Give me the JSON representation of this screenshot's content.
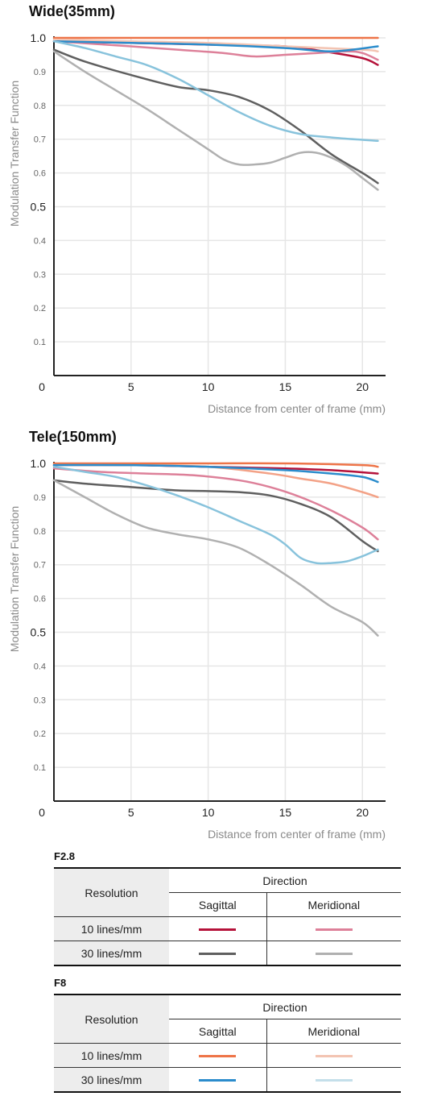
{
  "charts": [
    {
      "title": "Wide(35mm)",
      "xlabel": "Distance from center of frame (mm)",
      "ylabel": "Modulation Transfer Function",
      "xlim": [
        0,
        21.5
      ],
      "ylim": [
        0,
        1.0
      ],
      "xticks": [
        0,
        5,
        10,
        15,
        20
      ],
      "yticks": [
        {
          "v": 1.0,
          "label": "1.0",
          "major": true
        },
        {
          "v": 0.9,
          "label": "0.9",
          "major": false
        },
        {
          "v": 0.8,
          "label": "0.8",
          "major": false
        },
        {
          "v": 0.7,
          "label": "0.7",
          "major": false
        },
        {
          "v": 0.6,
          "label": "0.6",
          "major": false
        },
        {
          "v": 0.5,
          "label": "0.5",
          "major": true
        },
        {
          "v": 0.4,
          "label": "0.4",
          "major": false
        },
        {
          "v": 0.3,
          "label": "0.3",
          "major": false
        },
        {
          "v": 0.2,
          "label": "0.2",
          "major": false
        },
        {
          "v": 0.1,
          "label": "0.1",
          "major": false
        }
      ],
      "grid": true
    },
    {
      "title": "Tele(150mm)",
      "xlabel": "Distance from center of frame (mm)",
      "ylabel": "Modulation Transfer Function",
      "xlim": [
        0,
        21.5
      ],
      "ylim": [
        0,
        1.0
      ],
      "xticks": [
        0,
        5,
        10,
        15,
        20
      ],
      "yticks": [
        {
          "v": 1.0,
          "label": "1.0",
          "major": true
        },
        {
          "v": 0.9,
          "label": "0.9",
          "major": false
        },
        {
          "v": 0.8,
          "label": "0.8",
          "major": false
        },
        {
          "v": 0.7,
          "label": "0.7",
          "major": false
        },
        {
          "v": 0.6,
          "label": "0.6",
          "major": false
        },
        {
          "v": 0.5,
          "label": "0.5",
          "major": true
        },
        {
          "v": 0.4,
          "label": "0.4",
          "major": false
        },
        {
          "v": 0.3,
          "label": "0.3",
          "major": false
        },
        {
          "v": 0.2,
          "label": "0.2",
          "major": false
        },
        {
          "v": 0.1,
          "label": "0.1",
          "major": false
        }
      ],
      "grid": true
    }
  ],
  "chart_data": [
    {
      "type": "line",
      "title": "Wide(35mm)",
      "xlabel": "Distance from center of frame (mm)",
      "ylabel": "Modulation Transfer Function",
      "xlim": [
        0,
        21.5
      ],
      "ylim": [
        0,
        1.0
      ],
      "series": [
        {
          "key": "f28-10-sag",
          "color": "#b5123a",
          "x": [
            0,
            5,
            10,
            15,
            17.5,
            20,
            21
          ],
          "y": [
            0.99,
            0.985,
            0.98,
            0.975,
            0.96,
            0.94,
            0.92
          ]
        },
        {
          "key": "f28-10-mer",
          "color": "#dd8099",
          "x": [
            0,
            5,
            8,
            11,
            13,
            15,
            17,
            19,
            20,
            21
          ],
          "y": [
            0.99,
            0.975,
            0.965,
            0.955,
            0.945,
            0.95,
            0.955,
            0.96,
            0.955,
            0.935
          ]
        },
        {
          "key": "f28-30-sag",
          "color": "#5f5f5f",
          "x": [
            0,
            2,
            5,
            8,
            10,
            12,
            14,
            16,
            18,
            20,
            21
          ],
          "y": [
            0.965,
            0.93,
            0.89,
            0.855,
            0.845,
            0.825,
            0.785,
            0.725,
            0.655,
            0.6,
            0.57
          ]
        },
        {
          "key": "f28-30-mer",
          "color": "#b0b0b0",
          "x": [
            0,
            2,
            4,
            6,
            8,
            10,
            11,
            12,
            13,
            14,
            15,
            16,
            17,
            18,
            19,
            20,
            21
          ],
          "y": [
            0.96,
            0.9,
            0.845,
            0.79,
            0.73,
            0.67,
            0.64,
            0.625,
            0.625,
            0.63,
            0.645,
            0.66,
            0.66,
            0.645,
            0.62,
            0.585,
            0.55
          ]
        },
        {
          "key": "f8-10-sag",
          "color": "#ee7448",
          "x": [
            0,
            5,
            10,
            15,
            20,
            21
          ],
          "y": [
            1.0,
            1.0,
            1.0,
            1.0,
            1.0,
            1.0
          ]
        },
        {
          "key": "f8-10-mer",
          "color": "#f3c4b2",
          "x": [
            0,
            5,
            10,
            15,
            20,
            21
          ],
          "y": [
            0.995,
            0.99,
            0.985,
            0.975,
            0.965,
            0.96
          ]
        },
        {
          "key": "f8-30-sag",
          "color": "#2b8ccc",
          "x": [
            0,
            5,
            10,
            15,
            18,
            21
          ],
          "y": [
            0.99,
            0.985,
            0.98,
            0.97,
            0.96,
            0.975
          ]
        },
        {
          "key": "f8-30-mer",
          "color": "#88c3dc",
          "x": [
            0,
            2,
            4,
            6,
            8,
            10,
            12,
            14,
            16,
            18,
            20,
            21
          ],
          "y": [
            0.99,
            0.97,
            0.945,
            0.92,
            0.88,
            0.83,
            0.78,
            0.74,
            0.715,
            0.705,
            0.698,
            0.695
          ]
        }
      ]
    },
    {
      "type": "line",
      "title": "Tele(150mm)",
      "xlabel": "Distance from center of frame (mm)",
      "ylabel": "Modulation Transfer Function",
      "xlim": [
        0,
        21.5
      ],
      "ylim": [
        0,
        1.0
      ],
      "series": [
        {
          "key": "f28-10-sag",
          "color": "#b5123a",
          "x": [
            0,
            5,
            10,
            15,
            18,
            21
          ],
          "y": [
            0.995,
            0.995,
            0.99,
            0.985,
            0.98,
            0.97
          ]
        },
        {
          "key": "f28-10-mer",
          "color": "#dd8099",
          "x": [
            0,
            3,
            6,
            9,
            12,
            14,
            16,
            18,
            20,
            21
          ],
          "y": [
            0.985,
            0.975,
            0.97,
            0.965,
            0.95,
            0.93,
            0.9,
            0.86,
            0.81,
            0.775
          ]
        },
        {
          "key": "f28-30-sag",
          "color": "#5f5f5f",
          "x": [
            0,
            2,
            5,
            8,
            10,
            12,
            14,
            16,
            18,
            20,
            21
          ],
          "y": [
            0.95,
            0.94,
            0.93,
            0.92,
            0.918,
            0.915,
            0.905,
            0.88,
            0.84,
            0.77,
            0.74
          ]
        },
        {
          "key": "f28-30-mer",
          "color": "#b0b0b0",
          "x": [
            0,
            2,
            4,
            6,
            8,
            10,
            12,
            14,
            16,
            18,
            20,
            21
          ],
          "y": [
            0.95,
            0.9,
            0.85,
            0.81,
            0.79,
            0.775,
            0.75,
            0.7,
            0.64,
            0.575,
            0.53,
            0.49
          ]
        },
        {
          "key": "f8-10-sag",
          "color": "#ee7448",
          "x": [
            0,
            5,
            10,
            15,
            20,
            21
          ],
          "y": [
            1.0,
            1.0,
            1.0,
            1.0,
            0.995,
            0.99
          ]
        },
        {
          "key": "f8-10-mer",
          "color": "#f3a287",
          "x": [
            0,
            5,
            10,
            14,
            16,
            18,
            20,
            21
          ],
          "y": [
            0.995,
            0.995,
            0.99,
            0.97,
            0.955,
            0.94,
            0.915,
            0.9
          ]
        },
        {
          "key": "f8-30-sag",
          "color": "#2b8ccc",
          "x": [
            0,
            5,
            10,
            15,
            18,
            20,
            21
          ],
          "y": [
            0.995,
            0.995,
            0.99,
            0.98,
            0.97,
            0.96,
            0.945
          ]
        },
        {
          "key": "f8-30-mer",
          "color": "#88c3dc",
          "x": [
            0,
            2,
            4,
            6,
            8,
            10,
            12,
            14,
            15,
            16,
            17,
            18,
            19,
            20,
            21
          ],
          "y": [
            0.99,
            0.975,
            0.96,
            0.935,
            0.905,
            0.87,
            0.83,
            0.79,
            0.76,
            0.72,
            0.705,
            0.705,
            0.71,
            0.725,
            0.745
          ]
        }
      ]
    }
  ],
  "legends": [
    {
      "heading": "F2.8",
      "resolution_label": "Resolution",
      "direction_label": "Direction",
      "sagittal_label": "Sagittal",
      "meridional_label": "Meridional",
      "rows": [
        {
          "label": "10 lines/mm",
          "sagittal_color": "#b5123a",
          "meridional_color": "#dd8099"
        },
        {
          "label": "30 lines/mm",
          "sagittal_color": "#5f5f5f",
          "meridional_color": "#b0b0b0"
        }
      ]
    },
    {
      "heading": "F8",
      "resolution_label": "Resolution",
      "direction_label": "Direction",
      "sagittal_label": "Sagittal",
      "meridional_label": "Meridional",
      "rows": [
        {
          "label": "10 lines/mm",
          "sagittal_color": "#ee7448",
          "meridional_color": "#f3c4b2"
        },
        {
          "label": "30 lines/mm",
          "sagittal_color": "#2b8ccc",
          "meridional_color": "#c4dfea"
        }
      ]
    }
  ]
}
